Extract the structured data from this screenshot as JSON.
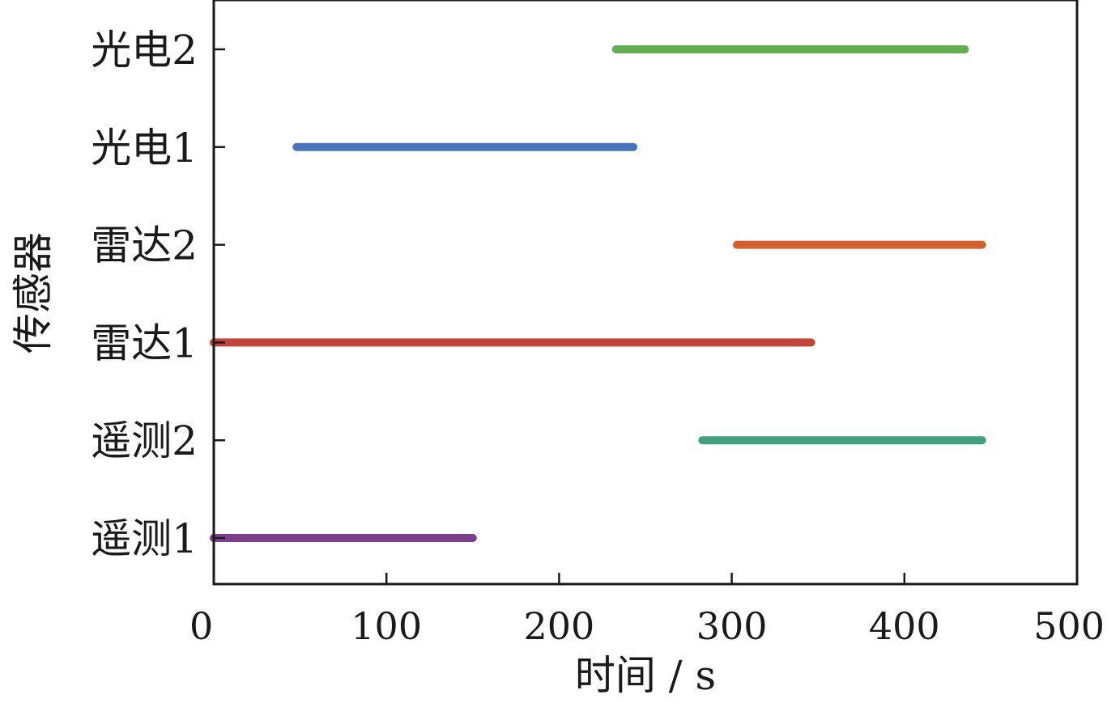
{
  "chart_data": {
    "type": "timeline",
    "title": "",
    "xlabel": "时间 / s",
    "ylabel": "传感器",
    "xlim": [
      0,
      500
    ],
    "xticks": [
      "0",
      "100",
      "200",
      "300",
      "400",
      "500"
    ],
    "grid": false,
    "categories": [
      "遥测1",
      "遥测2",
      "雷达1",
      "雷达2",
      "光电1",
      "光电2"
    ],
    "series": [
      {
        "category": "遥测1",
        "start": 0,
        "end": 150,
        "color": "#7b3f8c"
      },
      {
        "category": "遥测2",
        "start": 283,
        "end": 445,
        "color": "#43a07f"
      },
      {
        "category": "雷达1",
        "start": 0,
        "end": 346,
        "color": "#c0453b"
      },
      {
        "category": "雷达2",
        "start": 303,
        "end": 445,
        "color": "#d4602f"
      },
      {
        "category": "光电1",
        "start": 48,
        "end": 243,
        "color": "#4a73b8"
      },
      {
        "category": "光电2",
        "start": 233,
        "end": 435,
        "color": "#63ac4f"
      }
    ]
  }
}
